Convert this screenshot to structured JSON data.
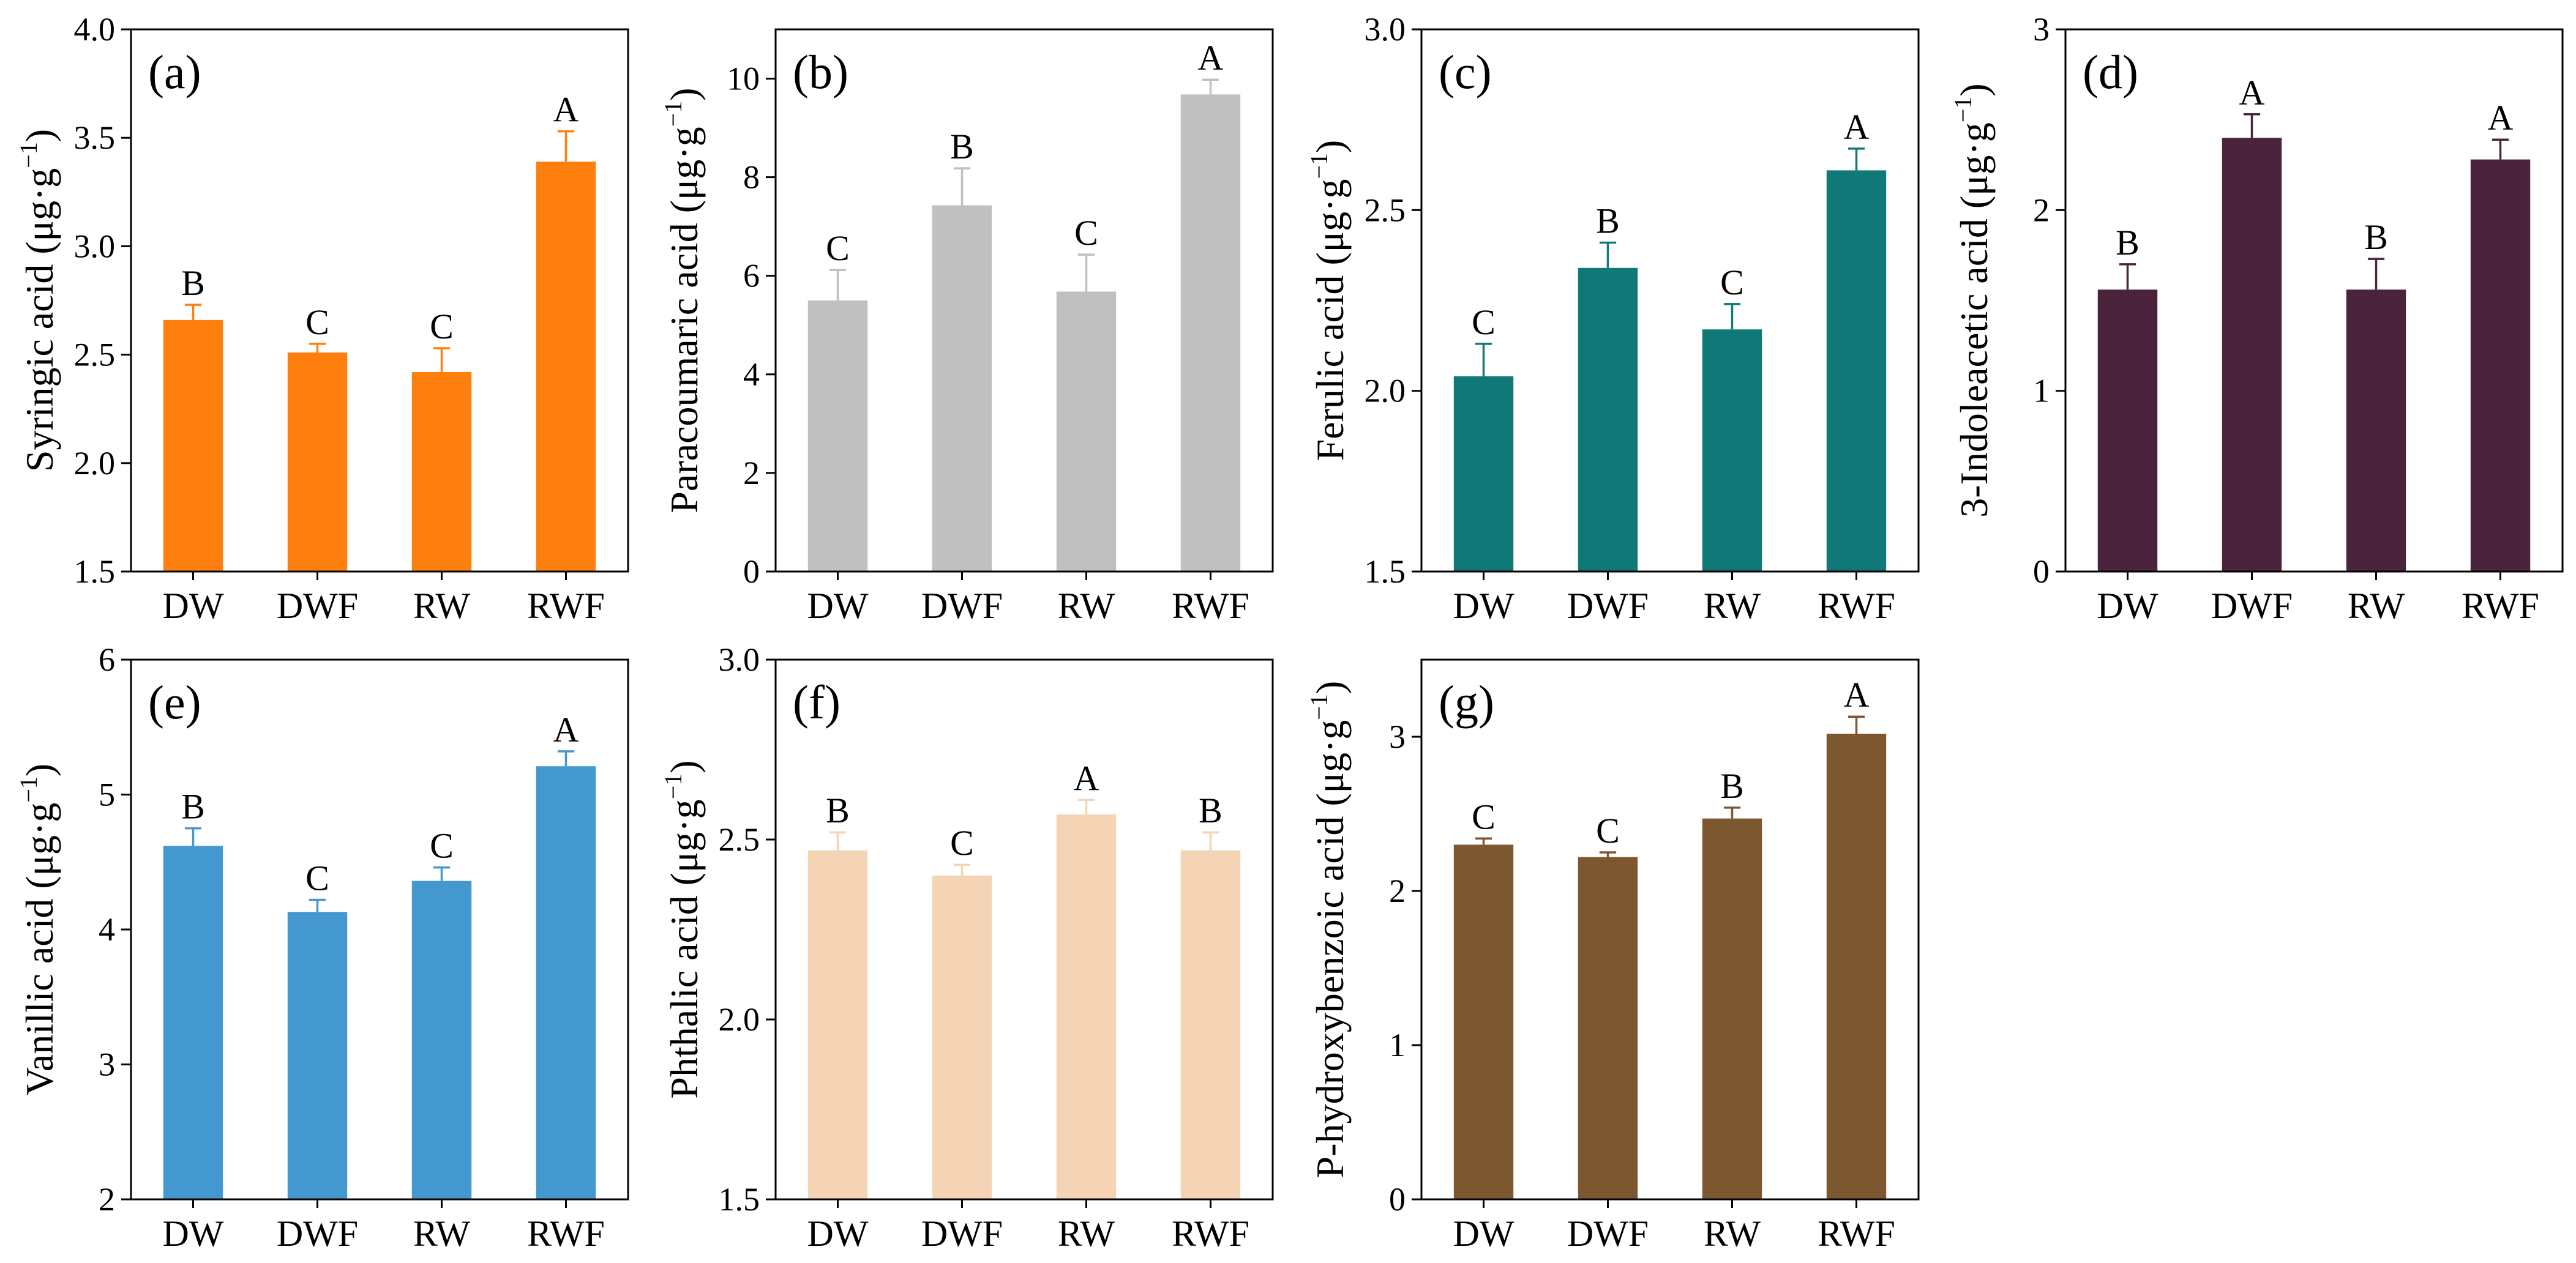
{
  "chart_data": [
    {
      "type": "bar",
      "panel_label": "(a)",
      "ylabel": "Syringic acid",
      "unit_base": "(μg·g",
      "unit_exp": "−1",
      "unit_close": ")",
      "ylim": [
        1.5,
        4.0
      ],
      "yticks": [
        "1.5",
        "2.0",
        "2.5",
        "3.0",
        "3.5",
        "4.0"
      ],
      "categories": [
        "DW",
        "DWF",
        "RW",
        "RWF"
      ],
      "values": [
        2.66,
        2.51,
        2.42,
        3.39
      ],
      "errors": [
        0.07,
        0.04,
        0.11,
        0.14
      ],
      "letters": [
        "B",
        "C",
        "C",
        "A"
      ],
      "color": "#FF7F0E"
    },
    {
      "type": "bar",
      "panel_label": "(b)",
      "ylabel": "Paracoumaric acid",
      "unit_base": "(μg·g",
      "unit_exp": "−1",
      "unit_close": ")",
      "ylim": [
        0,
        11
      ],
      "yticks": [
        "0",
        "2",
        "4",
        "6",
        "8",
        "10"
      ],
      "categories": [
        "DW",
        "DWF",
        "RW",
        "RWF"
      ],
      "values": [
        5.5,
        7.43,
        5.68,
        9.68
      ],
      "errors": [
        0.62,
        0.75,
        0.75,
        0.3
      ],
      "letters": [
        "C",
        "B",
        "C",
        "A"
      ],
      "color": "#C0C0C0"
    },
    {
      "type": "bar",
      "panel_label": "(c)",
      "ylabel": "Ferulic acid",
      "unit_base": "(μg·g",
      "unit_exp": "−1",
      "unit_close": ")",
      "ylim": [
        1.5,
        3.0
      ],
      "yticks": [
        "1.5",
        "2.0",
        "2.5",
        "3.0"
      ],
      "categories": [
        "DW",
        "DWF",
        "RW",
        "RWF"
      ],
      "values": [
        2.04,
        2.34,
        2.17,
        2.61
      ],
      "errors": [
        0.09,
        0.07,
        0.07,
        0.06
      ],
      "letters": [
        "C",
        "B",
        "C",
        "A"
      ],
      "color": "#117878"
    },
    {
      "type": "bar",
      "panel_label": "(d)",
      "ylabel": "3-Indoleacetic acid",
      "unit_base": "(μg·g",
      "unit_exp": "−1",
      "unit_close": ")",
      "ylim": [
        0,
        3
      ],
      "yticks": [
        "0",
        "1",
        "2",
        "3"
      ],
      "categories": [
        "DW",
        "DWF",
        "RW",
        "RWF"
      ],
      "values": [
        1.56,
        2.4,
        1.56,
        2.28
      ],
      "errors": [
        0.14,
        0.13,
        0.17,
        0.11
      ],
      "letters": [
        "B",
        "A",
        "B",
        "A"
      ],
      "color": "#4B233C"
    },
    {
      "type": "bar",
      "panel_label": "(e)",
      "ylabel": "Vanillic acid",
      "unit_base": "(μg·g",
      "unit_exp": "−1",
      "unit_close": ")",
      "ylim": [
        2,
        6
      ],
      "yticks": [
        "2",
        "3",
        "4",
        "5",
        "6"
      ],
      "categories": [
        "DW",
        "DWF",
        "RW",
        "RWF"
      ],
      "values": [
        4.62,
        4.13,
        4.36,
        5.21
      ],
      "errors": [
        0.13,
        0.09,
        0.1,
        0.11
      ],
      "letters": [
        "B",
        "C",
        "C",
        "A"
      ],
      "color": "#4398CF"
    },
    {
      "type": "bar",
      "panel_label": "(f)",
      "ylabel": "Phthalic acid",
      "unit_base": "(μg·g",
      "unit_exp": "−1",
      "unit_close": ")",
      "ylim": [
        1.5,
        3.0
      ],
      "yticks": [
        "1.5",
        "2.0",
        "2.5",
        "3.0"
      ],
      "categories": [
        "DW",
        "DWF",
        "RW",
        "RWF"
      ],
      "values": [
        2.47,
        2.4,
        2.57,
        2.47
      ],
      "errors": [
        0.05,
        0.03,
        0.04,
        0.05
      ],
      "letters": [
        "B",
        "C",
        "A",
        "B"
      ],
      "color": "#F5D4B5"
    },
    {
      "type": "bar",
      "panel_label": "(g)",
      "ylabel": "P-hydroxybenzoic acid",
      "unit_base": "(μg·g",
      "unit_exp": "−1",
      "unit_close": ")",
      "ylim": [
        0,
        3.5
      ],
      "yticks": [
        "0",
        "1",
        "2",
        "3"
      ],
      "categories": [
        "DW",
        "DWF",
        "RW",
        "RWF"
      ],
      "values": [
        2.3,
        2.22,
        2.47,
        3.02
      ],
      "errors": [
        0.04,
        0.03,
        0.07,
        0.11
      ],
      "letters": [
        "C",
        "C",
        "B",
        "A"
      ],
      "color": "#7D5730"
    }
  ]
}
